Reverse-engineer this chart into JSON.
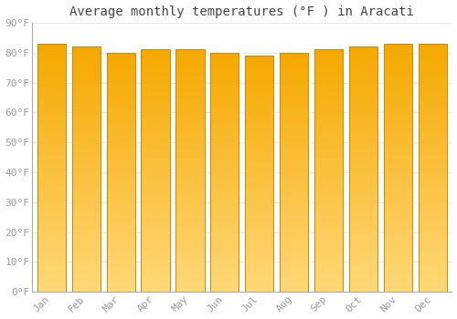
{
  "title": "Average monthly temperatures (°F ) in Aracati",
  "months": [
    "Jan",
    "Feb",
    "Mar",
    "Apr",
    "May",
    "Jun",
    "Jul",
    "Aug",
    "Sep",
    "Oct",
    "Nov",
    "Dec"
  ],
  "values": [
    83,
    82,
    80,
    81,
    81,
    80,
    79,
    80,
    81,
    82,
    83,
    83
  ],
  "ylim": [
    0,
    90
  ],
  "yticks": [
    0,
    10,
    20,
    30,
    40,
    50,
    60,
    70,
    80,
    90
  ],
  "ytick_labels": [
    "0°F",
    "10°F",
    "20°F",
    "30°F",
    "40°F",
    "50°F",
    "60°F",
    "70°F",
    "80°F",
    "90°F"
  ],
  "bar_color_top": "#F5A800",
  "bar_color_bottom": "#FFD878",
  "bar_edge_color": "#CC8800",
  "background_color": "#FFFFFF",
  "plot_bg_color": "#FFFFFF",
  "grid_color": "#E8E8E8",
  "title_fontsize": 10,
  "tick_fontsize": 8,
  "tick_color": "#999999",
  "spine_color": "#AAAAAA",
  "bar_width": 0.82
}
